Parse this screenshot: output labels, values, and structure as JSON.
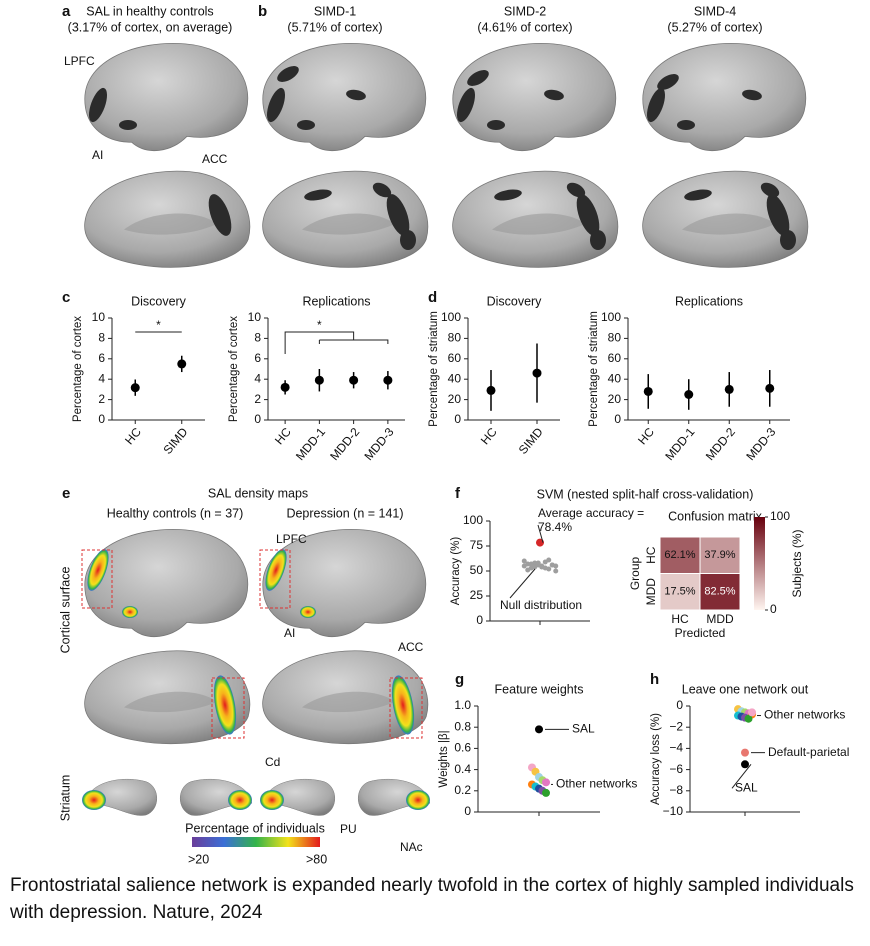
{
  "figure": {
    "panel_a": {
      "label": "a",
      "title": "SAL in healthy controls",
      "subtitle": "(3.17% of cortex, on average)",
      "annotations": [
        "LPFC",
        "AI",
        "ACC"
      ]
    },
    "panel_b": {
      "label": "b",
      "maps": [
        {
          "title": "SIMD-1",
          "subtitle": "(5.71% of cortex)"
        },
        {
          "title": "SIMD-2",
          "subtitle": "(4.61% of cortex)"
        },
        {
          "title": "SIMD-4",
          "subtitle": "(5.27% of cortex)"
        }
      ]
    },
    "panel_c": {
      "label": "c"
    },
    "panel_d": {
      "label": "d"
    },
    "panel_e": {
      "label": "e",
      "title": "SAL density maps",
      "groups": [
        "Healthy controls (n = 37)",
        "Depression (n = 141)"
      ],
      "rows": [
        "Cortical surface",
        "Striatum"
      ],
      "annotations": [
        "LPFC",
        "AI",
        "ACC",
        "Cd",
        "PU",
        "NAc"
      ],
      "colorbar": {
        "title": "Percentage of individuals",
        "min_label": ">20",
        "max_label": ">80"
      }
    },
    "panel_f": {
      "label": "f",
      "title": "SVM (nested split-half cross-validation)"
    },
    "panel_g": {
      "label": "g"
    },
    "panel_h": {
      "label": "h"
    },
    "caption": "Frontostriatal salience network is expanded nearly twofold in the cortex of highly sampled individuals with depression. Nature, 2024"
  },
  "chart_data": [
    {
      "type": "dot",
      "title": "Discovery",
      "ylabel": "Percentage of cortex",
      "categories": [
        "HC",
        "SIMD"
      ],
      "values": [
        3.17,
        5.5
      ],
      "errors": [
        0.8,
        0.8
      ],
      "color": "#000000",
      "annotation": "*",
      "ylim": [
        0,
        10
      ],
      "yticks": [
        0,
        2,
        4,
        6,
        8,
        10
      ]
    },
    {
      "type": "dot",
      "title": "Replications",
      "ylabel": "Percentage of cortex",
      "categories": [
        "HC",
        "MDD-1",
        "MDD-2",
        "MDD-3"
      ],
      "values": [
        3.2,
        3.9,
        3.9,
        3.9
      ],
      "errors": [
        0.7,
        1.1,
        0.8,
        0.9
      ],
      "color": "#000000",
      "annotation": "*",
      "ylim": [
        0,
        10
      ],
      "yticks": [
        0,
        2,
        4,
        6,
        8,
        10
      ]
    },
    {
      "type": "dot",
      "title": "Discovery",
      "ylabel": "Percentage of striatum",
      "categories": [
        "HC",
        "SIMD"
      ],
      "values": [
        29,
        46
      ],
      "errors": [
        20,
        29
      ],
      "color": "#000000",
      "ylim": [
        0,
        100
      ],
      "yticks": [
        0,
        20,
        40,
        60,
        80,
        100
      ]
    },
    {
      "type": "dot",
      "title": "Replications",
      "ylabel": "Percentage of striatum",
      "categories": [
        "HC",
        "MDD-1",
        "MDD-2",
        "MDD-3"
      ],
      "values": [
        28,
        25,
        30,
        31
      ],
      "errors": [
        17,
        15,
        17,
        18
      ],
      "color": "#000000",
      "ylim": [
        0,
        100
      ],
      "yticks": [
        0,
        20,
        40,
        60,
        80,
        100
      ]
    },
    {
      "type": "strip",
      "ylabel": "Accuracy (%)",
      "ylim": [
        0,
        100
      ],
      "yticks": [
        0,
        25,
        50,
        75,
        100
      ],
      "series": [
        {
          "name": "Average accuracy = 78.4%",
          "color": "#d62728",
          "values": [
            78.4
          ]
        },
        {
          "name": "Null distribution",
          "color": "#9e9e9e",
          "values": [
            55,
            57,
            53,
            58,
            56,
            54,
            59,
            52,
            56,
            55,
            60,
            51,
            57,
            54,
            58,
            55,
            53,
            61,
            56,
            50
          ]
        }
      ]
    },
    {
      "type": "heatmap",
      "title": "Confusion matrix",
      "xlabel": "Predicted",
      "ylabel": "Group",
      "categories": [
        "HC",
        "MDD"
      ],
      "values": [
        [
          62.1,
          37.9
        ],
        [
          17.5,
          82.5
        ]
      ],
      "value_labels": [
        [
          "62.1%",
          "37.9%"
        ],
        [
          "17.5%",
          "82.5%"
        ]
      ],
      "colorbar_label": "Subjects (%)",
      "clim": [
        0,
        100
      ],
      "cticks": [
        0,
        100
      ],
      "colors": [
        "#fff5f0",
        "#67000d"
      ]
    },
    {
      "type": "strip",
      "title": "Feature weights",
      "ylabel": "Weights |β|",
      "ylim": [
        0,
        1
      ],
      "yticks": [
        0,
        0.2,
        0.4,
        0.6,
        0.8,
        {
          "value": 1,
          "label": "1.0"
        }
      ],
      "series": [
        {
          "name": "SAL",
          "color": "#000000",
          "values": [
            0.78
          ]
        },
        {
          "name": "Other networks",
          "colors": [
            "#f4a6c6",
            "#f6c343",
            "#9fd3e6",
            "#a6d96a",
            "#e377c2",
            "#ff7f0e",
            "#17becf",
            "#1f4e9e",
            "#7b4ea3",
            "#2ca02c"
          ],
          "values": [
            0.42,
            0.38,
            0.33,
            0.3,
            0.28,
            0.26,
            0.24,
            0.22,
            0.2,
            0.18
          ]
        }
      ]
    },
    {
      "type": "strip",
      "title": "Leave one network out",
      "ylabel": "Accuracy loss (%)",
      "ylim": [
        -10,
        0
      ],
      "yticks": [
        0,
        {
          "value": -2,
          "label": "−2"
        },
        {
          "value": -4,
          "label": "−4"
        },
        {
          "value": -6,
          "label": "−6"
        },
        {
          "value": -8,
          "label": "−8"
        },
        {
          "value": -10,
          "label": "−10"
        }
      ],
      "series": [
        {
          "name": "Other networks",
          "colors": [
            "#f6c343",
            "#9fd3e6",
            "#a6d96a",
            "#e377c2",
            "#ff7f0e",
            "#17becf",
            "#1f4e9e",
            "#7b4ea3",
            "#2ca02c",
            "#f4a6c6"
          ],
          "values": [
            -0.3,
            -0.5,
            -0.6,
            -0.7,
            -0.8,
            -0.9,
            -1.0,
            -1.1,
            -1.2,
            -0.6
          ]
        },
        {
          "name": "Default-parietal",
          "color": "#e8776f",
          "values": [
            -4.4
          ]
        },
        {
          "name": "SAL",
          "color": "#000000",
          "values": [
            -5.5
          ]
        }
      ]
    }
  ]
}
